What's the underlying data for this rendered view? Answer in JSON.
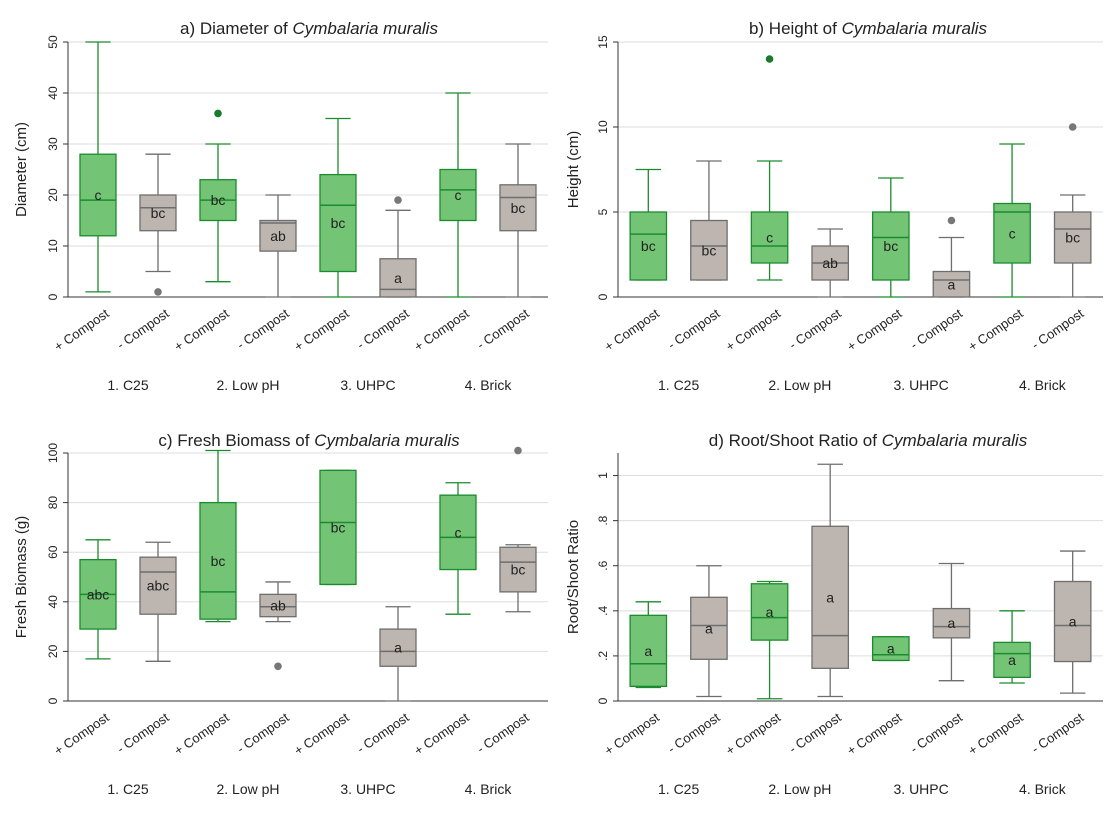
{
  "colors": {
    "plus_box": "#74c476",
    "plus_stroke": "#1a8c2e",
    "minus_box": "#bdb6b0",
    "minus_stroke": "#6e6e6e",
    "plus_outlier": "#1a7a2e",
    "minus_outlier": "#777777",
    "grid": "#dddddd"
  },
  "chart_data": [
    {
      "type": "box",
      "title_prefix": "a) Diameter of ",
      "title_species": "Cymbalaria muralis",
      "ylabel": "Diameter (cm)",
      "ylim": [
        0,
        50
      ],
      "yticks": [
        0,
        10,
        20,
        30,
        40,
        50
      ],
      "ytick_labels": [
        "0",
        "10",
        "20",
        "30",
        "40",
        "50"
      ],
      "grid": true,
      "groups": [
        "1. C25",
        "2. Low pH",
        "3. UHPC",
        "4. Brick"
      ],
      "treatments": [
        "+ Compost",
        "- Compost"
      ],
      "boxes": [
        {
          "group": "1. C25",
          "treatment": "+ Compost",
          "min": 1,
          "q1": 12,
          "median": 19,
          "q3": 28,
          "max": 50,
          "outliers": [],
          "letter": "c"
        },
        {
          "group": "1. C25",
          "treatment": "- Compost",
          "min": 5,
          "q1": 13,
          "median": 17.5,
          "q3": 20,
          "max": 28,
          "outliers": [
            1
          ],
          "letter": "bc"
        },
        {
          "group": "2. Low pH",
          "treatment": "+ Compost",
          "min": 3,
          "q1": 15,
          "median": 19,
          "q3": 23,
          "max": 30,
          "outliers": [
            36
          ],
          "letter": "bc"
        },
        {
          "group": "2. Low pH",
          "treatment": "- Compost",
          "min": 0,
          "q1": 9,
          "median": 14.5,
          "q3": 15,
          "max": 20,
          "outliers": [],
          "letter": "ab"
        },
        {
          "group": "3. UHPC",
          "treatment": "+ Compost",
          "min": 0,
          "q1": 5,
          "median": 18,
          "q3": 24,
          "max": 35,
          "outliers": [],
          "letter": "bc"
        },
        {
          "group": "3. UHPC",
          "treatment": "- Compost",
          "min": 0,
          "q1": 0,
          "median": 1.5,
          "q3": 7.5,
          "max": 17,
          "outliers": [
            19
          ],
          "letter": "a"
        },
        {
          "group": "4. Brick",
          "treatment": "+ Compost",
          "min": 0,
          "q1": 15,
          "median": 21,
          "q3": 25,
          "max": 40,
          "outliers": [],
          "letter": "c"
        },
        {
          "group": "4. Brick",
          "treatment": "- Compost",
          "min": 0,
          "q1": 13,
          "median": 19.5,
          "q3": 22,
          "max": 30,
          "outliers": [],
          "letter": "bc"
        }
      ]
    },
    {
      "type": "box",
      "title_prefix": "b) Height of ",
      "title_species": "Cymbalaria muralis",
      "ylabel": "Height (cm)",
      "ylim": [
        0,
        15
      ],
      "yticks": [
        0,
        5,
        10,
        15
      ],
      "ytick_labels": [
        "0",
        "5",
        "10",
        "15"
      ],
      "grid": true,
      "groups": [
        "1. C25",
        "2. Low pH",
        "3. UHPC",
        "4. Brick"
      ],
      "treatments": [
        "+ Compost",
        "- Compost"
      ],
      "boxes": [
        {
          "group": "1. C25",
          "treatment": "+ Compost",
          "min": 1,
          "q1": 1,
          "median": 3.7,
          "q3": 5,
          "max": 7.5,
          "outliers": [],
          "letter": "bc"
        },
        {
          "group": "1. C25",
          "treatment": "- Compost",
          "min": 1,
          "q1": 1,
          "median": 3,
          "q3": 4.5,
          "max": 8,
          "outliers": [],
          "letter": "bc"
        },
        {
          "group": "2. Low pH",
          "treatment": "+ Compost",
          "min": 1,
          "q1": 2,
          "median": 3,
          "q3": 5,
          "max": 8,
          "outliers": [
            14
          ],
          "letter": "c"
        },
        {
          "group": "2. Low pH",
          "treatment": "- Compost",
          "min": 0,
          "q1": 1,
          "median": 2,
          "q3": 3,
          "max": 4,
          "outliers": [],
          "letter": "ab"
        },
        {
          "group": "3. UHPC",
          "treatment": "+ Compost",
          "min": 0,
          "q1": 1,
          "median": 3.5,
          "q3": 5,
          "max": 7,
          "outliers": [],
          "letter": "bc"
        },
        {
          "group": "3. UHPC",
          "treatment": "- Compost",
          "min": 0,
          "q1": 0,
          "median": 1,
          "q3": 1.5,
          "max": 3.5,
          "outliers": [
            4.5
          ],
          "letter": "a"
        },
        {
          "group": "4. Brick",
          "treatment": "+ Compost",
          "min": 0,
          "q1": 2,
          "median": 5,
          "q3": 5.5,
          "max": 9,
          "outliers": [],
          "letter": "c"
        },
        {
          "group": "4. Brick",
          "treatment": "- Compost",
          "min": 0,
          "q1": 2,
          "median": 4,
          "q3": 5,
          "max": 6,
          "outliers": [
            10
          ],
          "letter": "bc"
        }
      ]
    },
    {
      "type": "box",
      "title_prefix": "c) Fresh Biomass of ",
      "title_species": "Cymbalaria muralis",
      "ylabel": "Fresh Biomass (g)",
      "ylim": [
        0,
        100
      ],
      "yticks": [
        0,
        20,
        40,
        60,
        80,
        100
      ],
      "ytick_labels": [
        "0",
        "20",
        "40",
        "60",
        "80",
        "100"
      ],
      "grid": true,
      "groups": [
        "1. C25",
        "2. Low pH",
        "3. UHPC",
        "4. Brick"
      ],
      "treatments": [
        "+ Compost",
        "- Compost"
      ],
      "boxes": [
        {
          "group": "1. C25",
          "treatment": "+ Compost",
          "min": 17,
          "q1": 29,
          "median": 43,
          "q3": 57,
          "max": 65,
          "outliers": [],
          "letter": "abc"
        },
        {
          "group": "1. C25",
          "treatment": "- Compost",
          "min": 16,
          "q1": 35,
          "median": 52,
          "q3": 58,
          "max": 64,
          "outliers": [],
          "letter": "abc"
        },
        {
          "group": "2. Low pH",
          "treatment": "+ Compost",
          "min": 32,
          "q1": 33,
          "median": 44,
          "q3": 80,
          "max": 101,
          "outliers": [],
          "letter": "bc"
        },
        {
          "group": "2. Low pH",
          "treatment": "- Compost",
          "min": 32,
          "q1": 34,
          "median": 38,
          "q3": 43,
          "max": 48,
          "outliers": [
            14
          ],
          "letter": "ab"
        },
        {
          "group": "3. UHPC",
          "treatment": "+ Compost",
          "min": 47,
          "q1": 47,
          "median": 72,
          "q3": 93,
          "max": 93,
          "outliers": [],
          "letter": "bc"
        },
        {
          "group": "3. UHPC",
          "treatment": "- Compost",
          "min": 0,
          "q1": 14,
          "median": 20,
          "q3": 29,
          "max": 38,
          "outliers": [],
          "letter": "a"
        },
        {
          "group": "4. Brick",
          "treatment": "+ Compost",
          "min": 35,
          "q1": 53,
          "median": 66,
          "q3": 83,
          "max": 88,
          "outliers": [],
          "letter": "c"
        },
        {
          "group": "4. Brick",
          "treatment": "- Compost",
          "min": 36,
          "q1": 44,
          "median": 56,
          "q3": 62,
          "max": 63,
          "outliers": [
            101
          ],
          "letter": "bc"
        }
      ]
    },
    {
      "type": "box",
      "title_prefix": "d) Root/Shoot Ratio of ",
      "title_species": "Cymbalaria muralis",
      "ylabel": "Root/Shoot Ratio",
      "ylim": [
        0,
        1.1
      ],
      "yticks": [
        0,
        0.2,
        0.4,
        0.6,
        0.8,
        1
      ],
      "ytick_labels": [
        "0",
        ".2",
        ".4",
        ".6",
        ".8",
        "1"
      ],
      "grid": true,
      "groups": [
        "1. C25",
        "2. Low pH",
        "3. UHPC",
        "4. Brick"
      ],
      "treatments": [
        "+ Compost",
        "- Compost"
      ],
      "boxes": [
        {
          "group": "1. C25",
          "treatment": "+ Compost",
          "min": 0.06,
          "q1": 0.065,
          "median": 0.165,
          "q3": 0.38,
          "max": 0.44,
          "outliers": [],
          "letter": "a"
        },
        {
          "group": "1. C25",
          "treatment": "- Compost",
          "min": 0.02,
          "q1": 0.185,
          "median": 0.335,
          "q3": 0.46,
          "max": 0.6,
          "outliers": [],
          "letter": "a"
        },
        {
          "group": "2. Low pH",
          "treatment": "+ Compost",
          "min": 0.01,
          "q1": 0.27,
          "median": 0.37,
          "q3": 0.52,
          "max": 0.53,
          "outliers": [],
          "letter": "a"
        },
        {
          "group": "2. Low pH",
          "treatment": "- Compost",
          "min": 0.02,
          "q1": 0.145,
          "median": 0.29,
          "q3": 0.775,
          "max": 1.05,
          "outliers": [],
          "letter": "a"
        },
        {
          "group": "3. UHPC",
          "treatment": "+ Compost",
          "min": 0.18,
          "q1": 0.18,
          "median": 0.205,
          "q3": 0.285,
          "max": 0.285,
          "outliers": [],
          "letter": "a"
        },
        {
          "group": "3. UHPC",
          "treatment": "- Compost",
          "min": 0.09,
          "q1": 0.28,
          "median": 0.33,
          "q3": 0.41,
          "max": 0.61,
          "outliers": [],
          "letter": "a"
        },
        {
          "group": "4. Brick",
          "treatment": "+ Compost",
          "min": 0.08,
          "q1": 0.105,
          "median": 0.21,
          "q3": 0.26,
          "max": 0.4,
          "outliers": [],
          "letter": "a"
        },
        {
          "group": "4. Brick",
          "treatment": "- Compost",
          "min": 0.035,
          "q1": 0.175,
          "median": 0.335,
          "q3": 0.53,
          "max": 0.665,
          "outliers": [],
          "letter": "a"
        }
      ]
    }
  ]
}
